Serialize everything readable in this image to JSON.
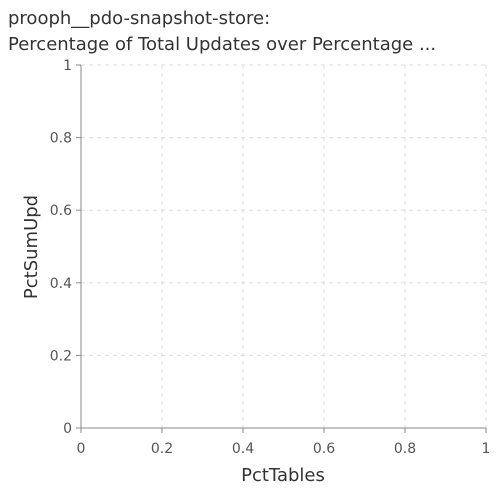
{
  "chart_data": {
    "type": "line",
    "title": "prooph__pdo-snapshot-store:",
    "subtitle": "Percentage of Total Updates over Percentage ...",
    "xlabel": "PctTables",
    "ylabel": "PctSumUpd",
    "xlim": [
      0,
      1
    ],
    "ylim": [
      0,
      1
    ],
    "x_ticks": [
      "0",
      "0.2",
      "0.4",
      "0.6",
      "0.8",
      "1"
    ],
    "y_ticks": [
      "0",
      "0.2",
      "0.4",
      "0.6",
      "0.8",
      "1"
    ],
    "grid": true,
    "series": []
  }
}
